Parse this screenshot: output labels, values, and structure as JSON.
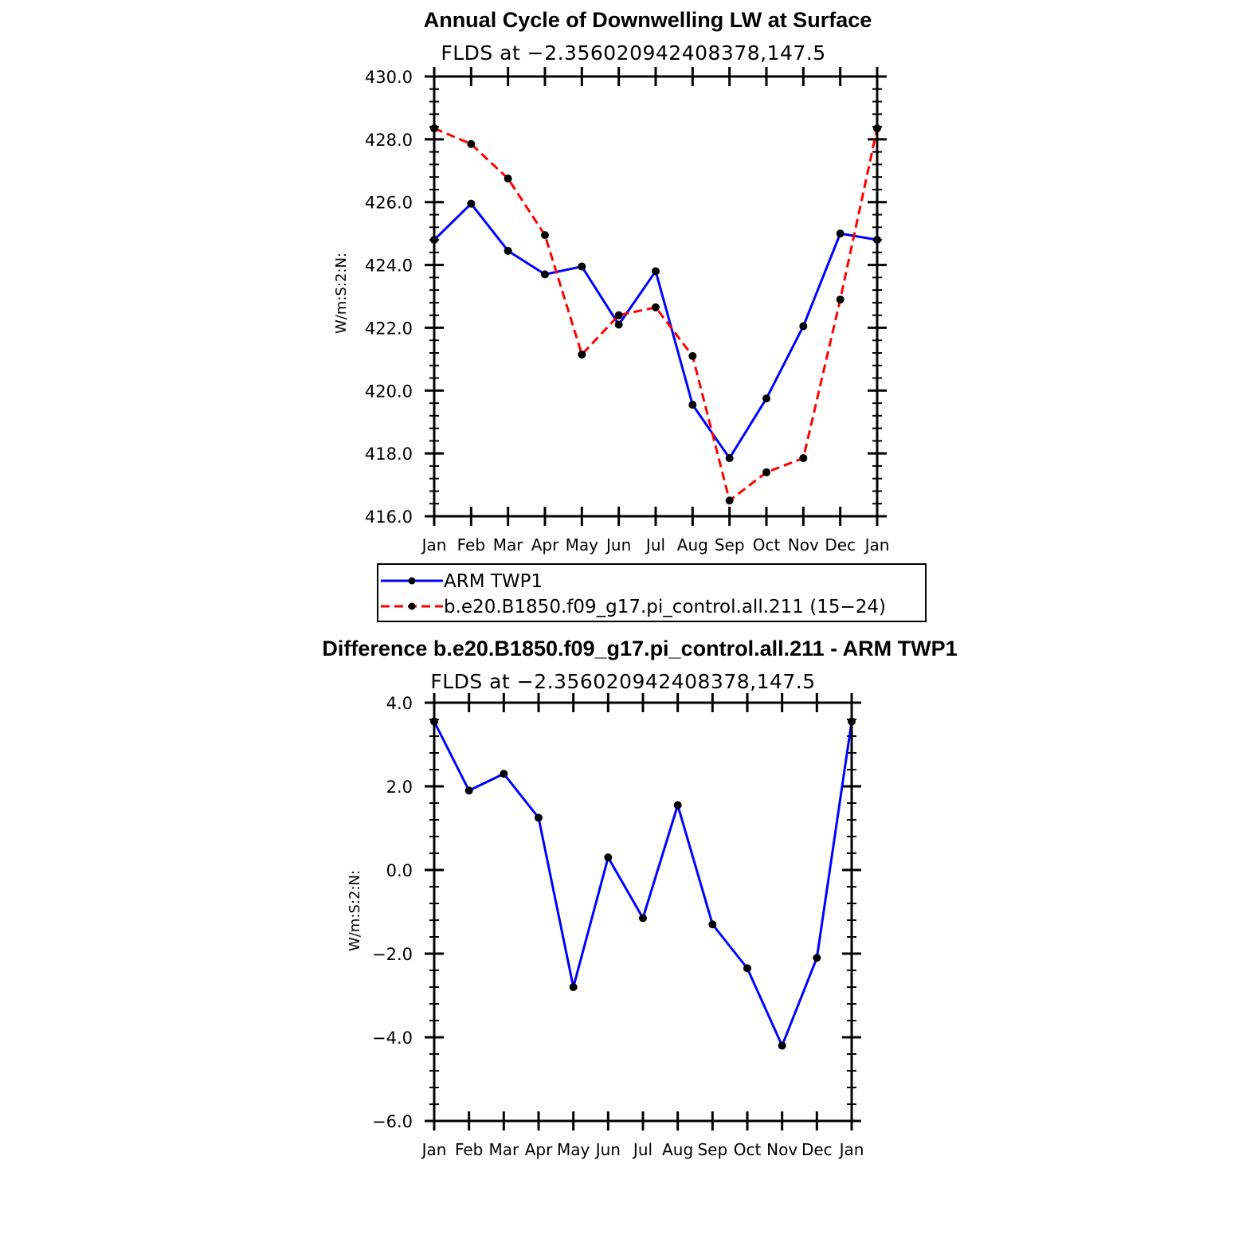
{
  "chart_data": [
    {
      "type": "line",
      "title": "Annual Cycle of Downwelling LW at Surface",
      "subtitle": "FLDS at −2.356020942408378,147.5",
      "ylabel": "W/m:S:2:N:",
      "xlabel": "",
      "categories": [
        "Jan",
        "Feb",
        "Mar",
        "Apr",
        "May",
        "Jun",
        "Jul",
        "Aug",
        "Sep",
        "Oct",
        "Nov",
        "Dec",
        "Jan"
      ],
      "ylim": [
        416.0,
        430.0
      ],
      "yticks": [
        "416.0",
        "418.0",
        "420.0",
        "422.0",
        "424.0",
        "426.0",
        "428.0",
        "430.0"
      ],
      "grid": false,
      "legend": "bottom",
      "series": [
        {
          "name": "ARM TWP1",
          "color": "#0000ff",
          "dash": "solid",
          "values": [
            424.8,
            425.95,
            424.45,
            423.7,
            423.95,
            422.1,
            423.8,
            419.55,
            417.85,
            419.75,
            422.05,
            425.0,
            424.8
          ]
        },
        {
          "name": "b.e20.B1850.f09_g17.pi_control.all.211 (15−24)",
          "color": "#ff0000",
          "dash": "dashed",
          "values": [
            428.35,
            427.85,
            426.75,
            424.95,
            421.15,
            422.4,
            422.65,
            421.1,
            416.5,
            417.4,
            417.85,
            422.9,
            428.35
          ]
        }
      ]
    },
    {
      "type": "line",
      "title": "Difference b.e20.B1850.f09_g17.pi_control.all.211 - ARM TWP1",
      "subtitle": "FLDS at −2.356020942408378,147.5",
      "ylabel": "W/m:S:2:N:",
      "xlabel": "",
      "categories": [
        "Jan",
        "Feb",
        "Mar",
        "Apr",
        "May",
        "Jun",
        "Jul",
        "Aug",
        "Sep",
        "Oct",
        "Nov",
        "Dec",
        "Jan"
      ],
      "ylim": [
        -6.0,
        4.0
      ],
      "yticks": [
        "−6.0",
        "−4.0",
        "−2.0",
        "0.0",
        "2.0",
        "4.0"
      ],
      "grid": false,
      "series": [
        {
          "color": "#0000ff",
          "dash": "solid",
          "values": [
            3.55,
            1.9,
            2.3,
            1.25,
            -2.8,
            0.3,
            -1.15,
            1.55,
            -1.3,
            -2.35,
            -4.2,
            -2.1,
            3.55
          ]
        }
      ]
    }
  ]
}
